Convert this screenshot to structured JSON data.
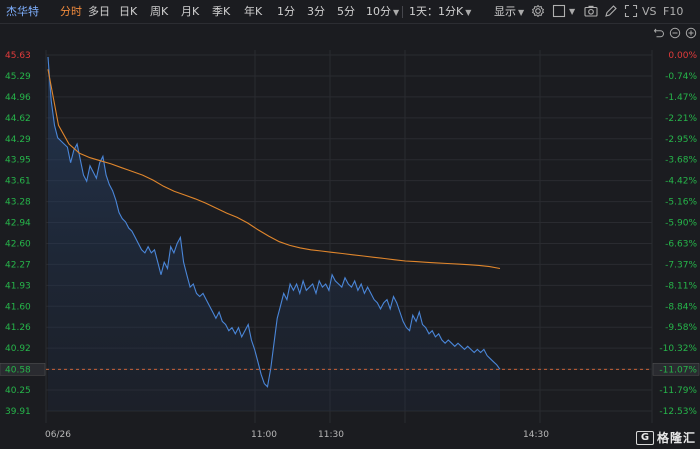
{
  "toolbar": {
    "stock_name": "杰华特",
    "tabs": [
      {
        "label": "分时",
        "active": true
      },
      {
        "label": "多日"
      },
      {
        "label": "日K"
      },
      {
        "label": "周K"
      },
      {
        "label": "月K"
      },
      {
        "label": "季K"
      },
      {
        "label": "年K"
      },
      {
        "label": "1分"
      },
      {
        "label": "3分"
      },
      {
        "label": "5分"
      },
      {
        "label": "10分"
      },
      {
        "label": "1天：1分K"
      }
    ],
    "display_label": "显示",
    "vs_label": "VS",
    "f10_label": "F10",
    "icons": [
      "settings-icon",
      "checkbox-icon",
      "camera-icon",
      "pen-icon",
      "fullscreen-icon"
    ]
  },
  "nav_icons": [
    "undo-icon",
    "zoom-out-icon",
    "zoom-in-icon"
  ],
  "colors": {
    "background": "#1b1c20",
    "price_line": "#4a86d8",
    "avg_line": "#e0862c",
    "up": "#e23b3b",
    "down": "#26b54a",
    "baseline": "#e06b3a"
  },
  "chart_data": {
    "type": "line",
    "x_ticks": [
      "06/26",
      "11:00",
      "11:30",
      "14:30"
    ],
    "left_axis": [
      "45.63",
      "45.29",
      "44.96",
      "44.62",
      "44.29",
      "43.95",
      "43.61",
      "43.28",
      "42.94",
      "42.60",
      "42.27",
      "41.93",
      "41.60",
      "41.26",
      "40.92",
      "40.58",
      "40.25",
      "39.91"
    ],
    "right_axis": [
      "0.00%",
      "-0.74%",
      "-1.47%",
      "-2.21%",
      "-2.95%",
      "-3.68%",
      "-4.42%",
      "-5.16%",
      "-5.90%",
      "-6.63%",
      "-7.37%",
      "-8.11%",
      "-8.84%",
      "-9.58%",
      "-10.32%",
      "-11.07%",
      "-11.79%",
      "-12.53%"
    ],
    "current_price": "40.58",
    "current_change": "-11.07%",
    "ylim": [
      39.91,
      45.63
    ],
    "series": [
      {
        "values": [
          45.6,
          44.9,
          44.5,
          44.3,
          44.25,
          44.2,
          44.15,
          43.9,
          44.1,
          44.2,
          43.95,
          43.7,
          43.6,
          43.85,
          43.75,
          43.65,
          43.9,
          44.0,
          43.7,
          43.55,
          43.45,
          43.3,
          43.1,
          43.0,
          42.95,
          42.85,
          42.8,
          42.7,
          42.6,
          42.5,
          42.45,
          42.55,
          42.45,
          42.5,
          42.3,
          42.1,
          42.3,
          42.2,
          42.55,
          42.45,
          42.6,
          42.7,
          42.3,
          42.1,
          41.9,
          41.95,
          41.8,
          41.75,
          41.8,
          41.7,
          41.6,
          41.5,
          41.4,
          41.5,
          41.35,
          41.3,
          41.2,
          41.25,
          41.15,
          41.25,
          41.1,
          41.2,
          41.3,
          41.05,
          40.9,
          40.7,
          40.5,
          40.35,
          40.3,
          40.6,
          41.0,
          41.4,
          41.6,
          41.8,
          41.7,
          41.95,
          41.85,
          41.95,
          41.8,
          42.0,
          41.85,
          41.9,
          41.95,
          41.8,
          42.0,
          41.9,
          41.95,
          41.85,
          42.1,
          42.0,
          41.95,
          41.9,
          42.05,
          41.95,
          41.9,
          42.0,
          41.85,
          41.95,
          41.8,
          41.9,
          41.8,
          41.7,
          41.65,
          41.55,
          41.65,
          41.7,
          41.55,
          41.75,
          41.65,
          41.5,
          41.35,
          41.25,
          41.2,
          41.45,
          41.35,
          41.5,
          41.3,
          41.25,
          41.15,
          41.2,
          41.1,
          41.15,
          41.05,
          41.0,
          41.05,
          41.0,
          40.95,
          41.0,
          40.95,
          40.9,
          40.95,
          40.9,
          40.85,
          40.9,
          40.85,
          40.9,
          40.8,
          40.75,
          40.7,
          40.65,
          40.58
        ],
        "color": "#4a86d8"
      },
      {
        "values": [
          45.4,
          44.5,
          44.2,
          44.05,
          43.98,
          43.93,
          43.88,
          43.82,
          43.76,
          43.7,
          43.62,
          43.52,
          43.44,
          43.38,
          43.32,
          43.25,
          43.17,
          43.09,
          43.02,
          42.93,
          42.82,
          42.72,
          42.63,
          42.57,
          42.53,
          42.5,
          42.48,
          42.46,
          42.44,
          42.42,
          42.4,
          42.38,
          42.36,
          42.34,
          42.32,
          42.31,
          42.3,
          42.29,
          42.28,
          42.27,
          42.26,
          42.25,
          42.23,
          42.2
        ],
        "color": "#e0862c"
      }
    ]
  },
  "logo": {
    "mark": "G",
    "text": "格隆汇"
  }
}
